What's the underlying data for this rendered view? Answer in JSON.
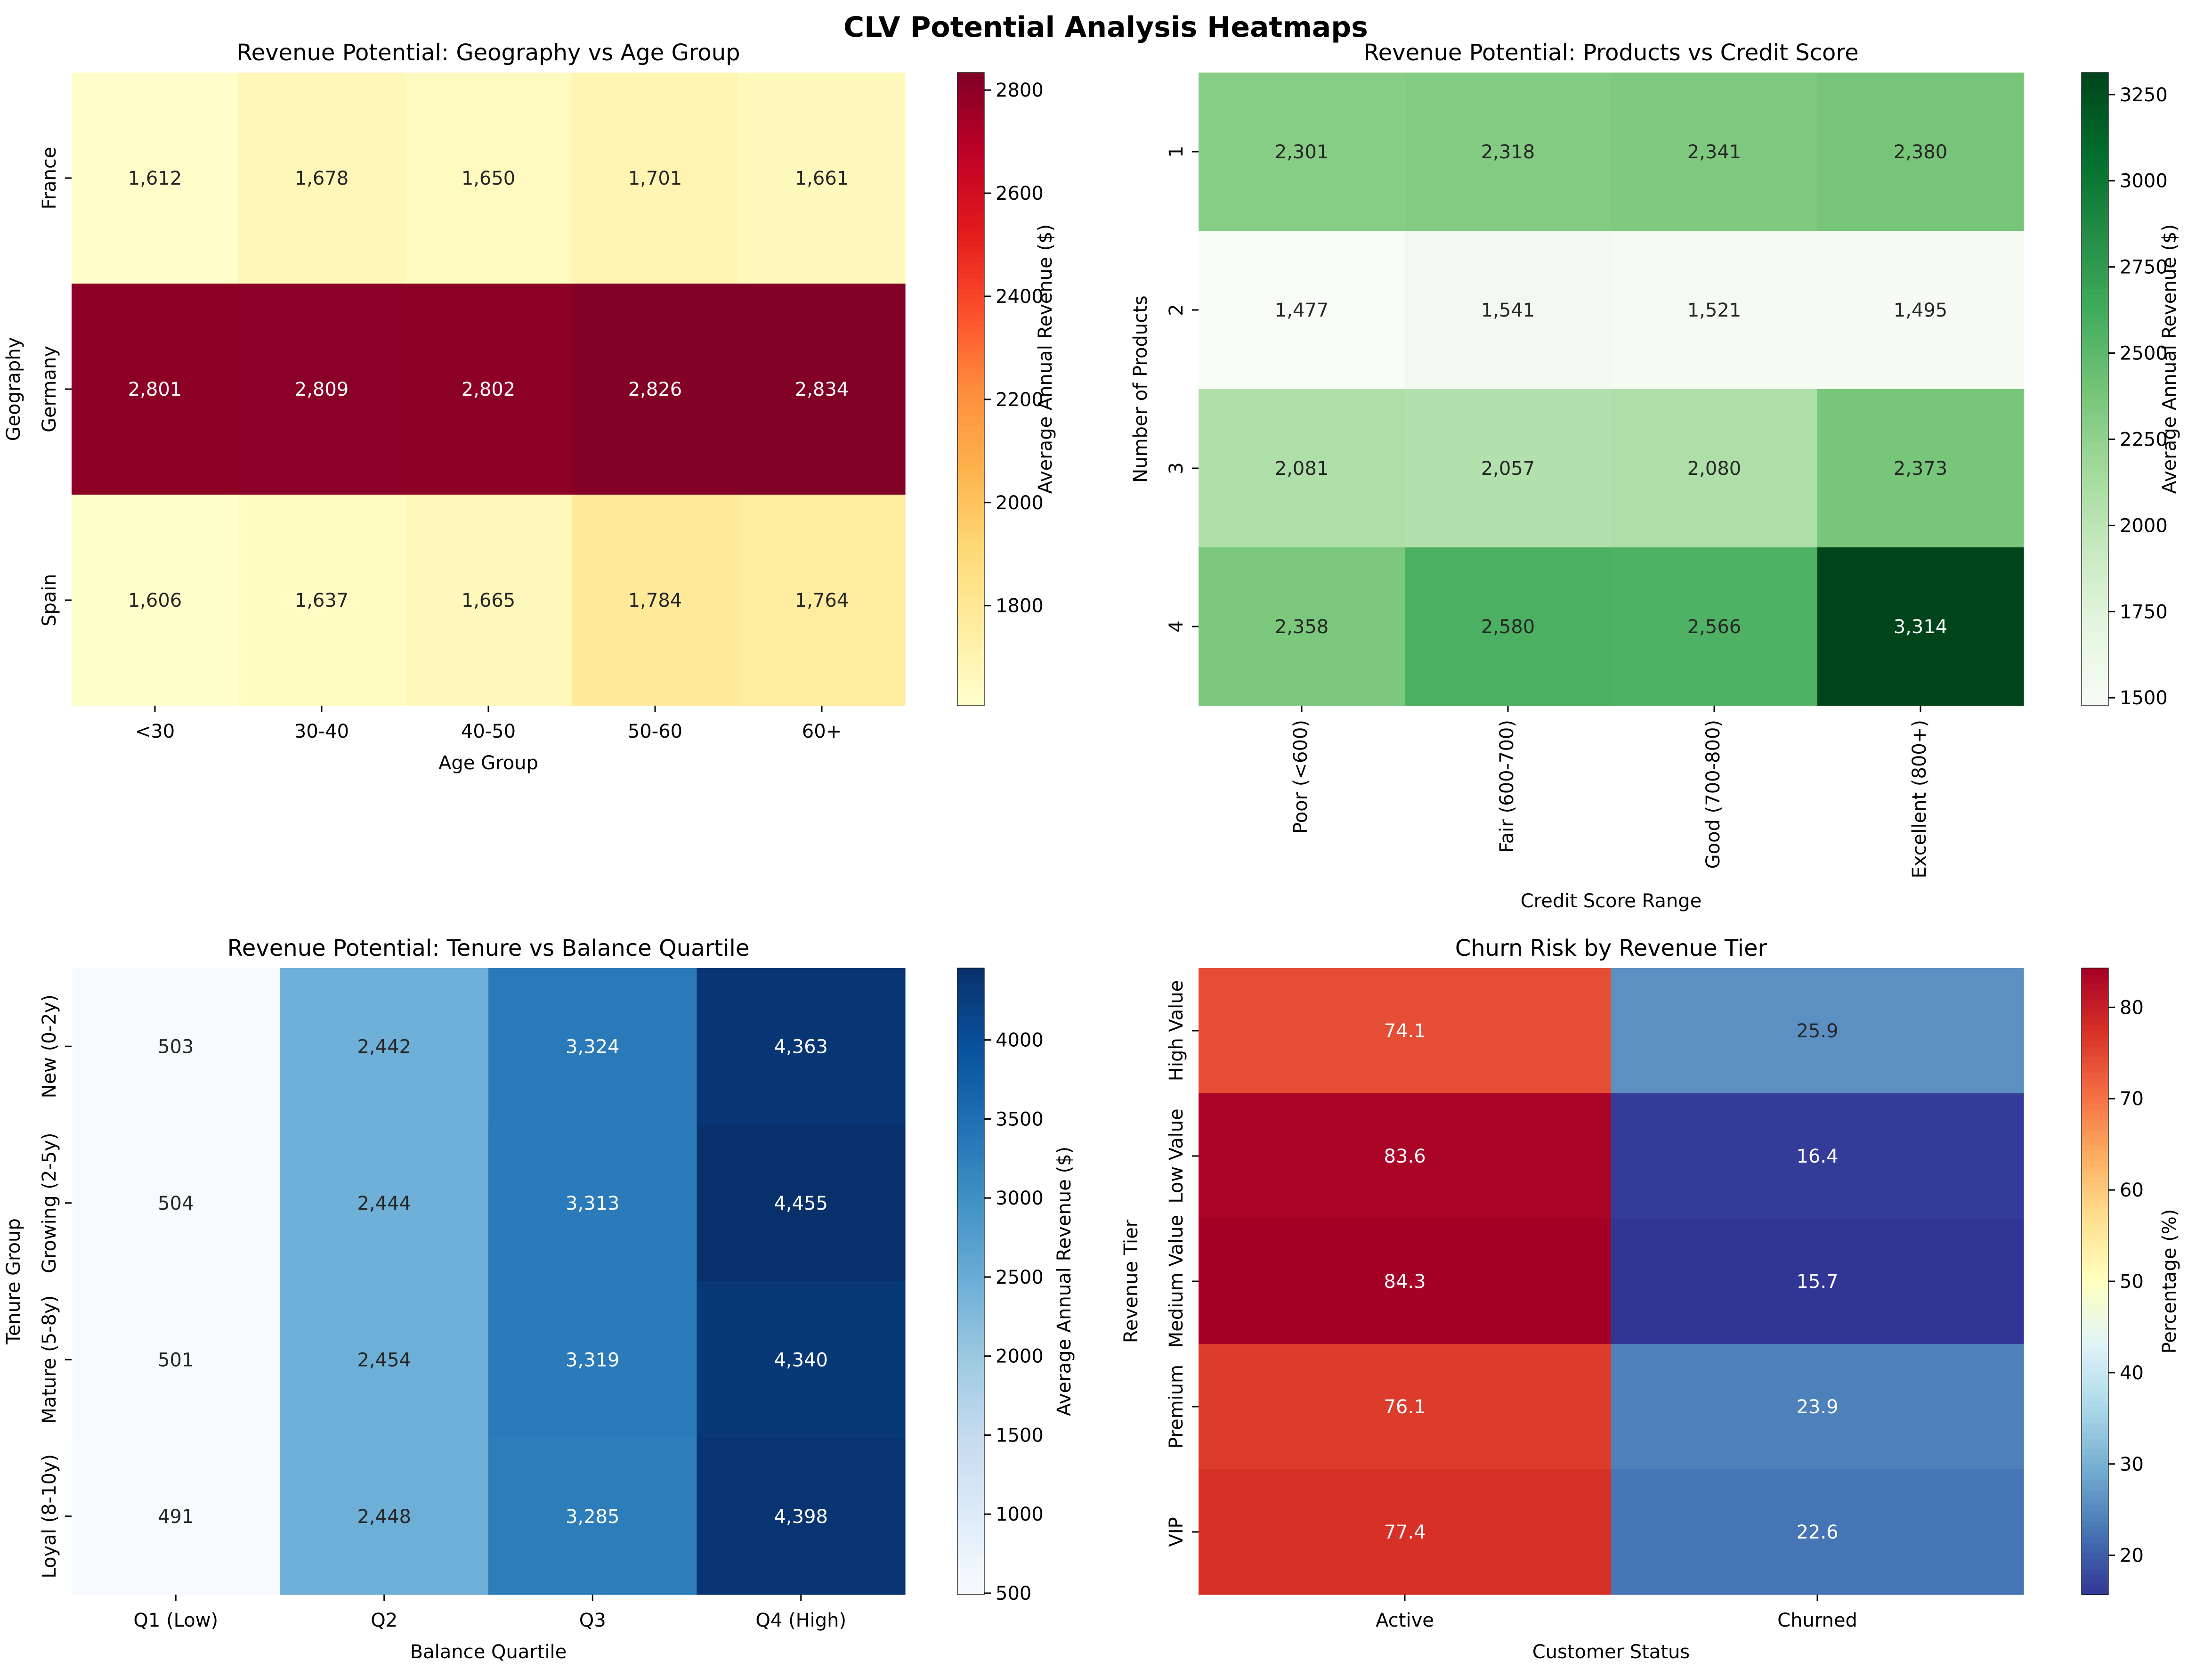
{
  "suptitle": "CLV Potential Analysis Heatmaps",
  "chart_data": [
    {
      "type": "heatmap",
      "title": "Revenue Potential: Geography vs Age Group",
      "xlabel": "Age Group",
      "ylabel": "Geography",
      "x": [
        "<30",
        "30-40",
        "40-50",
        "50-60",
        "60+"
      ],
      "y": [
        "France",
        "Germany",
        "Spain"
      ],
      "values": [
        [
          1612,
          1678,
          1650,
          1701,
          1661
        ],
        [
          2801,
          2809,
          2802,
          2826,
          2834
        ],
        [
          1606,
          1637,
          1665,
          1784,
          1764
        ]
      ],
      "cell_labels": [
        [
          "1,612",
          "1,678",
          "1,650",
          "1,701",
          "1,661"
        ],
        [
          "2,801",
          "2,809",
          "2,802",
          "2,826",
          "2,834"
        ],
        [
          "1,606",
          "1,637",
          "1,665",
          "1,784",
          "1,764"
        ]
      ],
      "colormap": "YlOrRd",
      "vmin": 1606,
      "vmax": 2834,
      "colorbar_label": "Average Annual Revenue ($)",
      "colorbar_ticks": [
        1800,
        2000,
        2200,
        2400,
        2600,
        2800
      ]
    },
    {
      "type": "heatmap",
      "title": "Revenue Potential: Products vs Credit Score",
      "xlabel": "Credit Score Range",
      "ylabel": "Number of Products",
      "x": [
        "Poor (<600)",
        "Fair (600-700)",
        "Good (700-800)",
        "Excellent (800+)"
      ],
      "y": [
        "1",
        "2",
        "3",
        "4"
      ],
      "values": [
        [
          2301,
          2318,
          2341,
          2380
        ],
        [
          1477,
          1541,
          1521,
          1495
        ],
        [
          2081,
          2057,
          2080,
          2373
        ],
        [
          2358,
          2580,
          2566,
          3314
        ]
      ],
      "cell_labels": [
        [
          "2,301",
          "2,318",
          "2,341",
          "2,380"
        ],
        [
          "1,477",
          "1,541",
          "1,521",
          "1,495"
        ],
        [
          "2,081",
          "2,057",
          "2,080",
          "2,373"
        ],
        [
          "2,358",
          "2,580",
          "2,566",
          "3,314"
        ]
      ],
      "colormap": "Greens",
      "vmin": 1477,
      "vmax": 3314,
      "colorbar_label": "Average Annual Revenue ($)",
      "colorbar_ticks": [
        1500,
        1750,
        2000,
        2250,
        2500,
        2750,
        3000,
        3250
      ]
    },
    {
      "type": "heatmap",
      "title": "Revenue Potential: Tenure vs Balance Quartile",
      "xlabel": "Balance Quartile",
      "ylabel": "Tenure Group",
      "x": [
        "Q1 (Low)",
        "Q2",
        "Q3",
        "Q4 (High)"
      ],
      "y": [
        "New (0-2y)",
        "Growing (2-5y)",
        "Mature (5-8y)",
        "Loyal (8-10y)"
      ],
      "values": [
        [
          503,
          2442,
          3324,
          4363
        ],
        [
          504,
          2444,
          3313,
          4455
        ],
        [
          501,
          2454,
          3319,
          4340
        ],
        [
          491,
          2448,
          3285,
          4398
        ]
      ],
      "cell_labels": [
        [
          "503",
          "2,442",
          "3,324",
          "4,363"
        ],
        [
          "504",
          "2,444",
          "3,313",
          "4,455"
        ],
        [
          "501",
          "2,454",
          "3,319",
          "4,340"
        ],
        [
          "491",
          "2,448",
          "3,285",
          "4,398"
        ]
      ],
      "colormap": "Blues",
      "vmin": 491,
      "vmax": 4455,
      "colorbar_label": "Average Annual Revenue ($)",
      "colorbar_ticks": [
        500,
        1000,
        1500,
        2000,
        2500,
        3000,
        3500,
        4000
      ]
    },
    {
      "type": "heatmap",
      "title": "Churn Risk by Revenue Tier",
      "xlabel": "Customer Status",
      "ylabel": "Revenue Tier",
      "x": [
        "Active",
        "Churned"
      ],
      "y": [
        "High Value",
        "Low Value",
        "Medium Value",
        "Premium",
        "VIP"
      ],
      "values": [
        [
          74.1,
          25.9
        ],
        [
          83.6,
          16.4
        ],
        [
          84.3,
          15.7
        ],
        [
          76.1,
          23.9
        ],
        [
          77.4,
          22.6
        ]
      ],
      "cell_labels": [
        [
          "74.1",
          "25.9"
        ],
        [
          "83.6",
          "16.4"
        ],
        [
          "84.3",
          "15.7"
        ],
        [
          "76.1",
          "23.9"
        ],
        [
          "77.4",
          "22.6"
        ]
      ],
      "colormap": "RdYlBu_r",
      "vmin": 15.7,
      "vmax": 84.3,
      "colorbar_label": "Percentage (%)",
      "colorbar_ticks": [
        20,
        30,
        40,
        50,
        60,
        70,
        80
      ]
    }
  ]
}
